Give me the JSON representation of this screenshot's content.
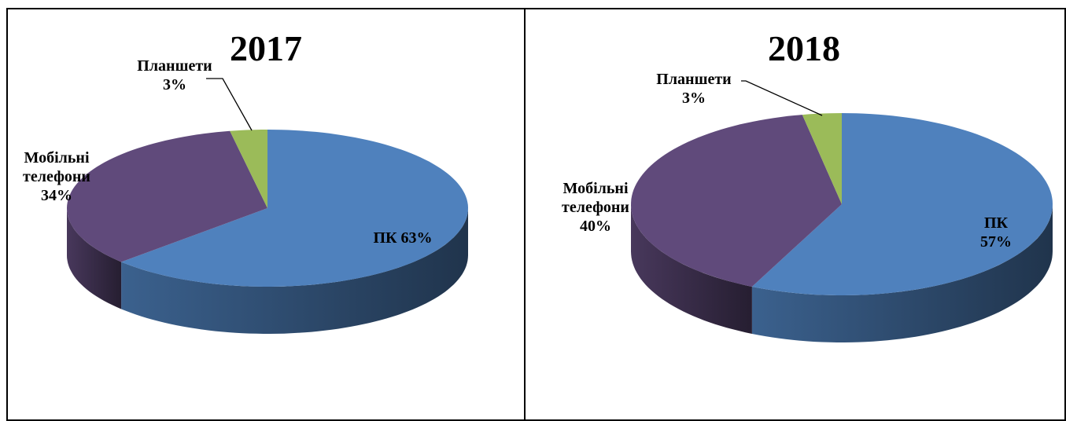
{
  "chart_data": [
    {
      "type": "pie3d",
      "title": "2017",
      "categories": [
        "ПК",
        "Мобільні телефони",
        "Планшети"
      ],
      "values": [
        63,
        34,
        3
      ],
      "value_labels": [
        "63%",
        "34%",
        "3%"
      ],
      "colors": [
        "#4f81bd",
        "#604a7b",
        "#9bbb59"
      ]
    },
    {
      "type": "pie3d",
      "title": "2018",
      "categories": [
        "ПК",
        "Мобільні телефони",
        "Планшети"
      ],
      "values": [
        57,
        40,
        3
      ],
      "value_labels": [
        "57%",
        "40%",
        "3%"
      ],
      "colors": [
        "#4f81bd",
        "#604a7b",
        "#9bbb59"
      ]
    }
  ]
}
